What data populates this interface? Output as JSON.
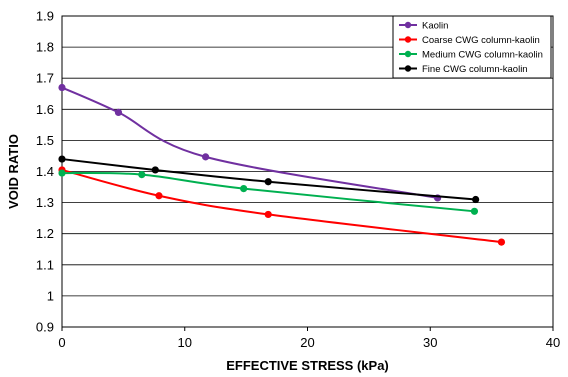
{
  "chart_data": {
    "type": "line",
    "xlabel": "EFFECTIVE STRESS (kPa)",
    "ylabel": "VOID RATIO",
    "xlim": [
      0,
      40
    ],
    "ylim": [
      0.9,
      1.9
    ],
    "xticks": [
      0,
      10,
      20,
      30,
      40
    ],
    "yticks": [
      0.9,
      1,
      1.1,
      1.2,
      1.3,
      1.4,
      1.5,
      1.6,
      1.7,
      1.8,
      1.9
    ],
    "xtick_labels": [
      "0",
      "10",
      "20",
      "30",
      "40"
    ],
    "ytick_labels": [
      "0.9",
      "1",
      "1.1",
      "1.2",
      "1.3",
      "1.4",
      "1.5",
      "1.6",
      "1.7",
      "1.8",
      "1.9"
    ],
    "grid": "horizontal",
    "legend_position": "top-right",
    "series": [
      {
        "name": "Kaolin",
        "color": "#7030a0",
        "x": [
          0,
          4.6,
          11.7,
          30.6
        ],
        "y": [
          1.67,
          1.59,
          1.447,
          1.315
        ]
      },
      {
        "name": "Coarse CWG column-kaolin",
        "color": "#ff0000",
        "x": [
          0,
          7.9,
          16.8,
          35.8
        ],
        "y": [
          1.405,
          1.322,
          1.262,
          1.173
        ]
      },
      {
        "name": "Medium CWG column-kaolin",
        "color": "#00b050",
        "x": [
          0,
          6.5,
          14.8,
          33.6
        ],
        "y": [
          1.395,
          1.39,
          1.345,
          1.272
        ]
      },
      {
        "name": "Fine CWG column-kaolin",
        "color": "#000000",
        "x": [
          0,
          7.6,
          16.8,
          33.7
        ],
        "y": [
          1.44,
          1.405,
          1.367,
          1.31
        ]
      }
    ]
  }
}
